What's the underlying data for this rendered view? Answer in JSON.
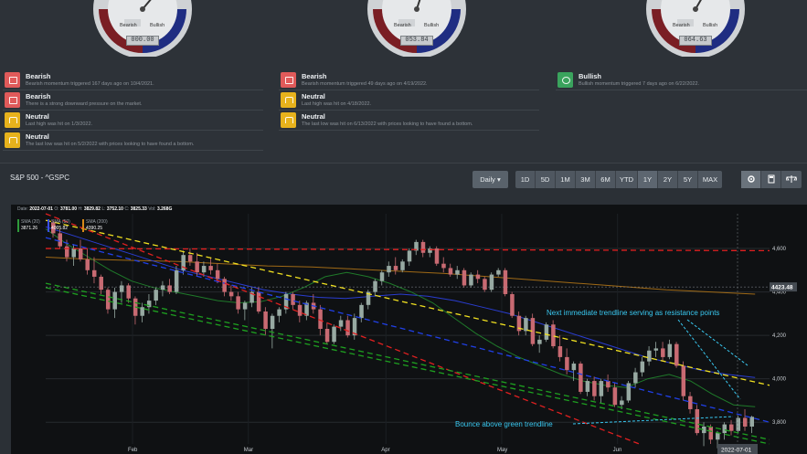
{
  "gauges": [
    {
      "bearish_label": "Bearish",
      "bullish_label": "Bullish",
      "value": "000.00",
      "needle_deg": 40
    },
    {
      "bearish_label": "Bearish",
      "bullish_label": "Bullish",
      "value": "053.84",
      "needle_deg": 18
    },
    {
      "bearish_label": "Bearish",
      "bullish_label": "Bullish",
      "value": "064.63",
      "needle_deg": 30
    }
  ],
  "signal_columns": [
    [
      {
        "kind": "bear",
        "title": "Bearish",
        "desc": "Bearish momentum triggered 167 days ago on 10/4/2021."
      },
      {
        "kind": "bear",
        "title": "Bearish",
        "desc": "There is a strong downward pressure on the market."
      },
      {
        "kind": "neut",
        "title": "Neutral",
        "desc": "Last high was hit on 1/3/2022."
      },
      {
        "kind": "neut",
        "title": "Neutral",
        "desc": "The last low was hit on 5/2/2022 with prices looking to have found a bottom."
      }
    ],
    [
      {
        "kind": "bear",
        "title": "Bearish",
        "desc": "Bearish momentum triggered 49 days ago on 4/19/2022."
      },
      {
        "kind": "neut",
        "title": "Neutral",
        "desc": "Last high was hit on 4/18/2022."
      },
      {
        "kind": "neut",
        "title": "Neutral",
        "desc": "The last low was hit on 6/13/2022 with prices looking to have found a bottom."
      }
    ],
    [
      {
        "kind": "bull",
        "title": "Bullish",
        "desc": "Bullish momentum triggered 7 days ago on 6/22/2022."
      }
    ]
  ],
  "panel": {
    "title": "S&P 500 - ^GSPC",
    "interval_label": "Daily",
    "ranges": [
      "1D",
      "5D",
      "1M",
      "3M",
      "6M",
      "YTD",
      "1Y",
      "2Y",
      "5Y",
      "MAX"
    ],
    "active_range": "1Y",
    "tools": [
      {
        "icon": "settings-icon",
        "active": true
      },
      {
        "icon": "calculator-icon",
        "active": false
      },
      {
        "icon": "balance-scale-icon",
        "active": false
      }
    ]
  },
  "chart_info": {
    "date_label": "Date:",
    "date": "2022-07-01",
    "open_label": "O:",
    "open": "3781.00",
    "high_label": "H:",
    "high": "3829.82",
    "low_label": "L:",
    "low": "3752.10",
    "close_label": "C:",
    "close": "3825.33",
    "vol_label": "Vol:",
    "vol": "3.268G",
    "sma20_label": "SMA (20)",
    "sma20": "3871.26",
    "sma50_label": "SMA (50)",
    "sma50": "4005.82",
    "sma200_label": "SMA (200)",
    "sma200": "4390.25"
  },
  "annotations": {
    "resistance": "Next immediate trendline serving as resistance points",
    "bounce": "Bounce above green trendline"
  },
  "current_price_label": "4423.48",
  "cursor_date_label": "2022-07-01",
  "colors": {
    "accent_cyan": "#39c8f0",
    "bearish_red": "#e05a5a",
    "neutral_yellow": "#e7b21c",
    "bullish_green": "#3aa35d"
  },
  "chart_data": {
    "type": "candlestick",
    "title": "",
    "x_ticks": [
      "Feb",
      "Mar",
      "Apr",
      "May",
      "Jun"
    ],
    "y_ticks": [
      "4,600",
      "4,400",
      "4,200",
      "4,000",
      "3,800"
    ],
    "ylim": [
      3700,
      4760
    ],
    "candles": [
      [
        4720,
        4730,
        4650,
        4670
      ],
      [
        4670,
        4690,
        4600,
        4610
      ],
      [
        4610,
        4640,
        4540,
        4560
      ],
      [
        4560,
        4620,
        4520,
        4600
      ],
      [
        4600,
        4640,
        4540,
        4550
      ],
      [
        4550,
        4600,
        4480,
        4500
      ],
      [
        4500,
        4560,
        4440,
        4470
      ],
      [
        4470,
        4480,
        4390,
        4410
      ],
      [
        4410,
        4420,
        4300,
        4320
      ],
      [
        4320,
        4420,
        4280,
        4400
      ],
      [
        4400,
        4450,
        4350,
        4430
      ],
      [
        4430,
        4440,
        4350,
        4370
      ],
      [
        4370,
        4380,
        4250,
        4290
      ],
      [
        4290,
        4350,
        4260,
        4330
      ],
      [
        4330,
        4390,
        4300,
        4360
      ],
      [
        4360,
        4420,
        4340,
        4410
      ],
      [
        4410,
        4450,
        4380,
        4430
      ],
      [
        4430,
        4460,
        4390,
        4400
      ],
      [
        4400,
        4520,
        4390,
        4500
      ],
      [
        4500,
        4590,
        4480,
        4570
      ],
      [
        4570,
        4600,
        4520,
        4540
      ],
      [
        4540,
        4580,
        4470,
        4490
      ],
      [
        4490,
        4540,
        4470,
        4520
      ],
      [
        4520,
        4560,
        4480,
        4500
      ],
      [
        4500,
        4530,
        4440,
        4460
      ],
      [
        4460,
        4470,
        4380,
        4400
      ],
      [
        4400,
        4430,
        4360,
        4380
      ],
      [
        4380,
        4400,
        4300,
        4320
      ],
      [
        4320,
        4360,
        4270,
        4350
      ],
      [
        4350,
        4420,
        4330,
        4400
      ],
      [
        4400,
        4420,
        4300,
        4310
      ],
      [
        4310,
        4330,
        4200,
        4230
      ],
      [
        4230,
        4300,
        4140,
        4290
      ],
      [
        4290,
        4330,
        4260,
        4320
      ],
      [
        4320,
        4400,
        4300,
        4390
      ],
      [
        4390,
        4400,
        4320,
        4340
      ],
      [
        4340,
        4360,
        4260,
        4290
      ],
      [
        4290,
        4360,
        4270,
        4350
      ],
      [
        4350,
        4390,
        4300,
        4320
      ],
      [
        4320,
        4340,
        4200,
        4230
      ],
      [
        4230,
        4260,
        4160,
        4170
      ],
      [
        4170,
        4250,
        4160,
        4240
      ],
      [
        4240,
        4290,
        4220,
        4270
      ],
      [
        4270,
        4290,
        4190,
        4200
      ],
      [
        4200,
        4300,
        4180,
        4280
      ],
      [
        4280,
        4350,
        4260,
        4340
      ],
      [
        4340,
        4410,
        4320,
        4400
      ],
      [
        4400,
        4460,
        4380,
        4450
      ],
      [
        4450,
        4500,
        4430,
        4490
      ],
      [
        4490,
        4540,
        4470,
        4520
      ],
      [
        4520,
        4560,
        4480,
        4500
      ],
      [
        4500,
        4550,
        4490,
        4540
      ],
      [
        4540,
        4600,
        4520,
        4590
      ],
      [
        4590,
        4640,
        4570,
        4630
      ],
      [
        4630,
        4640,
        4560,
        4580
      ],
      [
        4580,
        4610,
        4560,
        4600
      ],
      [
        4600,
        4610,
        4520,
        4530
      ],
      [
        4530,
        4560,
        4490,
        4510
      ],
      [
        4510,
        4530,
        4470,
        4480
      ],
      [
        4480,
        4520,
        4460,
        4500
      ],
      [
        4500,
        4510,
        4420,
        4430
      ],
      [
        4430,
        4490,
        4420,
        4480
      ],
      [
        4480,
        4500,
        4440,
        4460
      ],
      [
        4460,
        4470,
        4400,
        4410
      ],
      [
        4410,
        4490,
        4400,
        4480
      ],
      [
        4480,
        4510,
        4470,
        4500
      ],
      [
        4500,
        4510,
        4380,
        4390
      ],
      [
        4390,
        4400,
        4280,
        4290
      ],
      [
        4290,
        4310,
        4200,
        4220
      ],
      [
        4220,
        4290,
        4200,
        4280
      ],
      [
        4280,
        4300,
        4150,
        4160
      ],
      [
        4160,
        4200,
        4120,
        4180
      ],
      [
        4180,
        4260,
        4170,
        4250
      ],
      [
        4250,
        4270,
        4140,
        4150
      ],
      [
        4150,
        4200,
        4080,
        4100
      ],
      [
        4100,
        4140,
        4020,
        4040
      ],
      [
        4040,
        4080,
        3990,
        4070
      ],
      [
        4070,
        4080,
        3930,
        3940
      ],
      [
        3940,
        4000,
        3920,
        3990
      ],
      [
        3990,
        4010,
        3900,
        3920
      ],
      [
        3920,
        4000,
        3890,
        3990
      ],
      [
        3990,
        4020,
        3940,
        3960
      ],
      [
        3960,
        3980,
        3870,
        3880
      ],
      [
        3880,
        3920,
        3860,
        3900
      ],
      [
        3900,
        3990,
        3890,
        3980
      ],
      [
        3980,
        4050,
        3960,
        4030
      ],
      [
        4030,
        4100,
        4010,
        4080
      ],
      [
        4080,
        4150,
        4060,
        4130
      ],
      [
        4130,
        4170,
        4100,
        4140
      ],
      [
        4140,
        4170,
        4080,
        4100
      ],
      [
        4100,
        4180,
        4090,
        4160
      ],
      [
        4160,
        4170,
        4050,
        4060
      ],
      [
        4060,
        4080,
        3900,
        3920
      ],
      [
        3920,
        3940,
        3840,
        3860
      ],
      [
        3860,
        3880,
        3740,
        3750
      ],
      [
        3750,
        3800,
        3690,
        3780
      ],
      [
        3780,
        3790,
        3700,
        3720
      ],
      [
        3720,
        3760,
        3680,
        3750
      ],
      [
        3750,
        3800,
        3720,
        3790
      ],
      [
        3790,
        3810,
        3740,
        3760
      ],
      [
        3760,
        3830,
        3750,
        3820
      ],
      [
        3820,
        3860,
        3760,
        3780
      ],
      [
        3780,
        3830,
        3750,
        3825
      ]
    ],
    "sma20": [
      4690,
      4620,
      4560,
      4500,
      4450,
      4420,
      4400,
      4380,
      4360,
      4350,
      4355,
      4380,
      4420,
      4470,
      4490,
      4470,
      4440,
      4400,
      4350,
      4280,
      4210,
      4150,
      4100,
      4060,
      4020,
      3990,
      3970,
      3960,
      4000,
      4020,
      3990,
      3930,
      3880,
      3871
    ],
    "sma50": [
      4700,
      4660,
      4620,
      4580,
      4540,
      4500,
      4470,
      4440,
      4410,
      4390,
      4375,
      4370,
      4380,
      4390,
      4380,
      4360,
      4330,
      4300,
      4260,
      4220,
      4180,
      4140,
      4100,
      4070,
      4040,
      4020,
      4006
    ],
    "sma200": [
      4560,
      4550,
      4545,
      4540,
      4530,
      4520,
      4515,
      4505,
      4495,
      4485,
      4470,
      4455,
      4440,
      4425,
      4410,
      4400,
      4390
    ],
    "trendlines": [
      {
        "color": "red",
        "dashed": true,
        "from": [
          0,
          4600
        ],
        "to": [
          1,
          4590
        ]
      },
      {
        "color": "yellow",
        "dashed": true,
        "from": [
          0,
          4730
        ],
        "to": [
          1,
          3970
        ]
      },
      {
        "color": "blue",
        "dashed": true,
        "from": [
          0,
          4650
        ],
        "to": [
          1,
          3800
        ]
      },
      {
        "color": "red",
        "dashed": true,
        "from": [
          0,
          4760
        ],
        "to": [
          0.82,
          3700
        ]
      },
      {
        "color": "green",
        "dashed": true,
        "from": [
          0,
          4440
        ],
        "to": [
          1,
          3720
        ]
      },
      {
        "color": "green",
        "dashed": true,
        "from": [
          0,
          4420
        ],
        "to": [
          1,
          3700
        ]
      }
    ]
  }
}
